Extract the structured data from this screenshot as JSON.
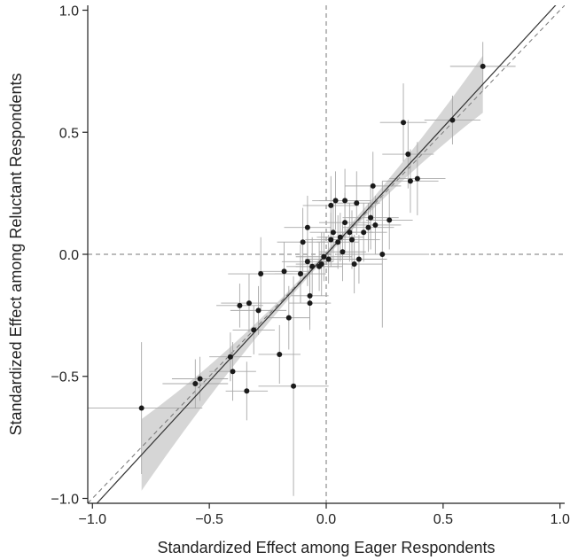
{
  "chart_data": {
    "type": "scatter",
    "title": "",
    "xlabel": "Standardized Effect among Eager Respondents",
    "ylabel": "Standardized Effect among Reluctant Respondents",
    "xlim": [
      -1.02,
      1.02
    ],
    "ylim": [
      -1.02,
      1.02
    ],
    "x_ticks": [
      -1.0,
      -0.5,
      0.0,
      0.5,
      1.0
    ],
    "y_ticks": [
      -1.0,
      -0.5,
      0.0,
      0.5,
      1.0
    ],
    "x_tick_labels": [
      "−1.0",
      "−0.5",
      "0.0",
      "0.5",
      "1.0"
    ],
    "y_tick_labels": [
      "−1.0",
      "−0.5",
      "0.0",
      "0.5",
      "1.0"
    ],
    "grid": false,
    "reference_lines": {
      "horizontal_zero": true,
      "vertical_zero": true,
      "identity_45deg_dashed": true
    },
    "fit_line": {
      "intercept": 0.0,
      "slope": 1.04,
      "ci_band": "gray"
    },
    "points": [
      {
        "x": -0.79,
        "y": -0.63,
        "xerr": 0.26,
        "yerr": 0.27
      },
      {
        "x": -0.56,
        "y": -0.53,
        "xerr": 0.14,
        "yerr": 0.1
      },
      {
        "x": -0.54,
        "y": -0.51,
        "xerr": 0.12,
        "yerr": 0.09
      },
      {
        "x": -0.41,
        "y": -0.42,
        "xerr": 0.09,
        "yerr": 0.1
      },
      {
        "x": -0.4,
        "y": -0.48,
        "xerr": 0.1,
        "yerr": 0.12
      },
      {
        "x": -0.37,
        "y": -0.21,
        "xerr": 0.1,
        "yerr": 0.09
      },
      {
        "x": -0.33,
        "y": -0.2,
        "xerr": 0.12,
        "yerr": 0.12
      },
      {
        "x": -0.34,
        "y": -0.56,
        "xerr": 0.09,
        "yerr": 0.12
      },
      {
        "x": -0.31,
        "y": -0.31,
        "xerr": 0.09,
        "yerr": 0.1
      },
      {
        "x": -0.29,
        "y": -0.23,
        "xerr": 0.12,
        "yerr": 0.1
      },
      {
        "x": -0.28,
        "y": -0.08,
        "xerr": 0.14,
        "yerr": 0.15
      },
      {
        "x": -0.2,
        "y": -0.41,
        "xerr": 0.09,
        "yerr": 0.12
      },
      {
        "x": -0.18,
        "y": -0.07,
        "xerr": 0.11,
        "yerr": 0.12
      },
      {
        "x": -0.16,
        "y": -0.26,
        "xerr": 0.09,
        "yerr": 0.13
      },
      {
        "x": -0.14,
        "y": -0.54,
        "xerr": 0.15,
        "yerr": 0.45
      },
      {
        "x": -0.11,
        "y": -0.08,
        "xerr": 0.11,
        "yerr": 0.12
      },
      {
        "x": -0.1,
        "y": 0.05,
        "xerr": 0.11,
        "yerr": 0.14
      },
      {
        "x": -0.08,
        "y": 0.11,
        "xerr": 0.1,
        "yerr": 0.13
      },
      {
        "x": -0.08,
        "y": -0.03,
        "xerr": 0.11,
        "yerr": 0.1
      },
      {
        "x": -0.07,
        "y": -0.17,
        "xerr": 0.08,
        "yerr": 0.12
      },
      {
        "x": -0.07,
        "y": -0.2,
        "xerr": 0.09,
        "yerr": 0.11
      },
      {
        "x": -0.06,
        "y": -0.05,
        "xerr": 0.11,
        "yerr": 0.12
      },
      {
        "x": -0.03,
        "y": -0.05,
        "xerr": 0.1,
        "yerr": 0.1
      },
      {
        "x": -0.02,
        "y": -0.04,
        "xerr": 0.11,
        "yerr": 0.13
      },
      {
        "x": -0.01,
        "y": -0.01,
        "xerr": 0.12,
        "yerr": 0.1
      },
      {
        "x": 0.01,
        "y": -0.02,
        "xerr": 0.1,
        "yerr": 0.1
      },
      {
        "x": 0.02,
        "y": 0.06,
        "xerr": 0.11,
        "yerr": 0.11
      },
      {
        "x": 0.02,
        "y": 0.2,
        "xerr": 0.12,
        "yerr": 0.12
      },
      {
        "x": 0.03,
        "y": 0.09,
        "xerr": 0.1,
        "yerr": 0.12
      },
      {
        "x": 0.04,
        "y": 0.22,
        "xerr": 0.1,
        "yerr": 0.12
      },
      {
        "x": 0.05,
        "y": 0.05,
        "xerr": 0.09,
        "yerr": 0.11
      },
      {
        "x": 0.06,
        "y": 0.07,
        "xerr": 0.1,
        "yerr": 0.1
      },
      {
        "x": 0.07,
        "y": 0.01,
        "xerr": 0.1,
        "yerr": 0.12
      },
      {
        "x": 0.08,
        "y": 0.13,
        "xerr": 0.11,
        "yerr": 0.12
      },
      {
        "x": 0.08,
        "y": 0.22,
        "xerr": 0.11,
        "yerr": 0.13
      },
      {
        "x": 0.1,
        "y": 0.09,
        "xerr": 0.1,
        "yerr": 0.12
      },
      {
        "x": 0.11,
        "y": 0.06,
        "xerr": 0.12,
        "yerr": 0.12
      },
      {
        "x": 0.12,
        "y": -0.04,
        "xerr": 0.12,
        "yerr": 0.12
      },
      {
        "x": 0.13,
        "y": 0.21,
        "xerr": 0.1,
        "yerr": 0.13
      },
      {
        "x": 0.14,
        "y": -0.02,
        "xerr": 0.12,
        "yerr": 0.1
      },
      {
        "x": 0.16,
        "y": 0.09,
        "xerr": 0.1,
        "yerr": 0.12
      },
      {
        "x": 0.18,
        "y": 0.11,
        "xerr": 0.11,
        "yerr": 0.1
      },
      {
        "x": 0.19,
        "y": 0.15,
        "xerr": 0.12,
        "yerr": 0.13
      },
      {
        "x": 0.2,
        "y": 0.28,
        "xerr": 0.12,
        "yerr": 0.14
      },
      {
        "x": 0.21,
        "y": 0.12,
        "xerr": 0.11,
        "yerr": 0.12
      },
      {
        "x": 0.24,
        "y": 0.0,
        "xerr": 0.2,
        "yerr": 0.3
      },
      {
        "x": 0.27,
        "y": 0.14,
        "xerr": 0.1,
        "yerr": 0.12
      },
      {
        "x": 0.33,
        "y": 0.54,
        "xerr": 0.1,
        "yerr": 0.16
      },
      {
        "x": 0.35,
        "y": 0.41,
        "xerr": 0.11,
        "yerr": 0.14
      },
      {
        "x": 0.36,
        "y": 0.3,
        "xerr": 0.12,
        "yerr": 0.13
      },
      {
        "x": 0.39,
        "y": 0.31,
        "xerr": 0.12,
        "yerr": 0.15
      },
      {
        "x": 0.54,
        "y": 0.55,
        "xerr": 0.12,
        "yerr": 0.1
      },
      {
        "x": 0.67,
        "y": 0.77,
        "xerr": 0.14,
        "yerr": 0.1
      }
    ]
  }
}
